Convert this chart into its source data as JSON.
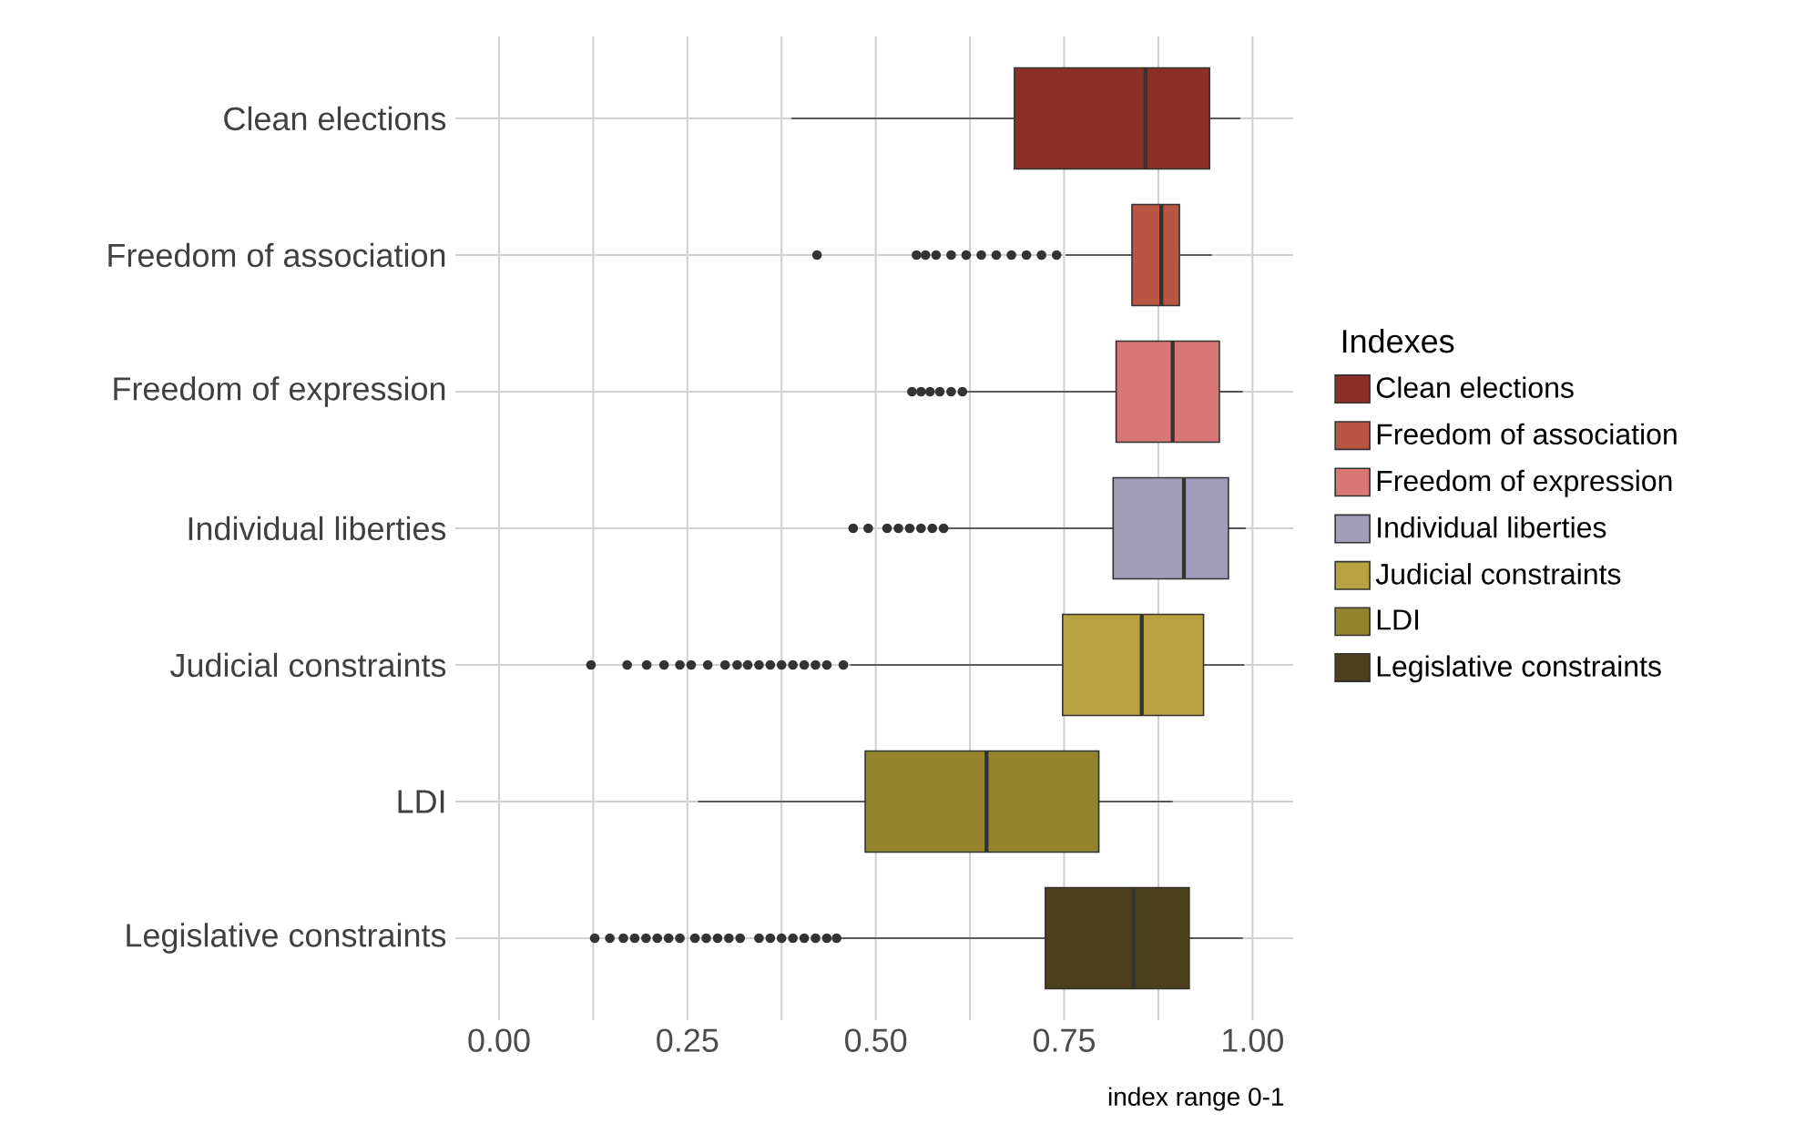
{
  "chart_data": {
    "type": "box",
    "orientation": "horizontal",
    "categories": [
      "Clean elections",
      "Freedom of association",
      "Freedom of expression",
      "Individual liberties",
      "Judicial constraints",
      "LDI",
      "Legislative constraints"
    ],
    "series": [
      {
        "name": "Clean elections",
        "color": "#8b3027",
        "boxes": [
          {
            "low": 0.388,
            "q1": 0.684,
            "median": 0.858,
            "q3": 0.943,
            "high": 0.984
          },
          null,
          null,
          null,
          null,
          null,
          null
        ]
      },
      {
        "name": "Freedom of association",
        "color": "#ba5544",
        "boxes": [
          null,
          {
            "low": 0.752,
            "q1": 0.84,
            "median": 0.879,
            "q3": 0.903,
            "high": 0.946,
            "outliers": [
              0.422,
              0.554,
              0.566,
              0.58,
              0.6,
              0.62,
              0.64,
              0.66,
              0.68,
              0.7,
              0.72,
              0.74
            ]
          },
          null,
          null,
          null,
          null,
          null
        ]
      },
      {
        "name": "Freedom of expression",
        "color": "#d97777",
        "boxes": [
          null,
          null,
          {
            "low": 0.62,
            "q1": 0.819,
            "median": 0.894,
            "q3": 0.956,
            "high": 0.987,
            "outliers": [
              0.548,
              0.56,
              0.572,
              0.585,
              0.6,
              0.615
            ]
          },
          null,
          null,
          null,
          null
        ]
      },
      {
        "name": "Individual liberties",
        "color": "#a29db8",
        "boxes": [
          null,
          null,
          null,
          {
            "low": 0.596,
            "q1": 0.815,
            "median": 0.909,
            "q3": 0.968,
            "high": 0.991,
            "outliers": [
              0.47,
              0.49,
              0.515,
              0.53,
              0.545,
              0.56,
              0.575,
              0.59
            ]
          },
          null,
          null,
          null
        ]
      },
      {
        "name": "Judicial constraints",
        "color": "#b8a23f",
        "boxes": [
          null,
          null,
          null,
          null,
          {
            "low": 0.466,
            "q1": 0.748,
            "median": 0.853,
            "q3": 0.935,
            "high": 0.989,
            "outliers": [
              0.122,
              0.17,
              0.196,
              0.219,
              0.24,
              0.255,
              0.277,
              0.3,
              0.316,
              0.33,
              0.345,
              0.36,
              0.375,
              0.39,
              0.405,
              0.42,
              0.435,
              0.457
            ]
          },
          null,
          null
        ]
      },
      {
        "name": "LDI",
        "color": "#94842e",
        "boxes": [
          null,
          null,
          null,
          null,
          null,
          {
            "low": 0.264,
            "q1": 0.486,
            "median": 0.647,
            "q3": 0.796,
            "high": 0.894
          },
          null
        ]
      },
      {
        "name": "Legislative constraints",
        "color": "#4e3f1c",
        "boxes": [
          null,
          null,
          null,
          null,
          null,
          null,
          {
            "low": 0.448,
            "q1": 0.725,
            "median": 0.842,
            "q3": 0.916,
            "high": 0.987,
            "outliers": [
              0.127,
              0.147,
              0.165,
              0.18,
              0.195,
              0.21,
              0.225,
              0.24,
              0.26,
              0.275,
              0.29,
              0.305,
              0.32,
              0.345,
              0.36,
              0.375,
              0.39,
              0.405,
              0.42,
              0.435,
              0.448
            ]
          }
        ]
      }
    ],
    "xlim": [
      -0.058,
      1.054
    ],
    "xticks": [
      {
        "value": 0,
        "label": "0.00"
      },
      {
        "value": 0.25,
        "label": "0.25"
      },
      {
        "value": 0.5,
        "label": "0.50"
      },
      {
        "value": 0.75,
        "label": "0.75"
      },
      {
        "value": 1,
        "label": "1.00"
      }
    ],
    "xlabel": "index range 0-1",
    "legend_title": "Indexes",
    "legend": "right",
    "grid": true,
    "marker": "circle"
  }
}
